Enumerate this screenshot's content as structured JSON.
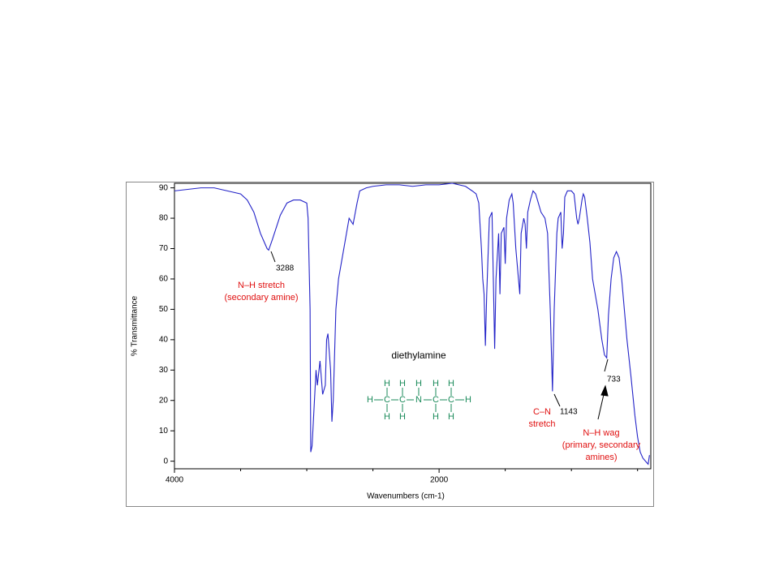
{
  "chart_data": {
    "type": "line",
    "xlabel": "Wavenumbers (cm-1)",
    "ylabel": "% Transmittance",
    "xlim": [
      4000,
      400
    ],
    "ylim": [
      -2.5,
      91.5
    ],
    "xticks": [
      4000,
      2000
    ],
    "xminor_ticks": [
      3500,
      3000,
      2500,
      1500,
      1000,
      500
    ],
    "yticks": [
      0,
      10,
      20,
      30,
      40,
      50,
      60,
      70,
      80,
      90
    ],
    "series": [
      {
        "color": "#2323c8",
        "x": [
          4000,
          3900,
          3800,
          3700,
          3600,
          3500,
          3450,
          3400,
          3350,
          3300,
          3288,
          3260,
          3200,
          3150,
          3100,
          3050,
          3000,
          2990,
          2975,
          2970,
          2960,
          2930,
          2920,
          2900,
          2880,
          2860,
          2850,
          2840,
          2820,
          2810,
          2800,
          2780,
          2760,
          2740,
          2700,
          2680,
          2650,
          2620,
          2600,
          2550,
          2500,
          2400,
          2300,
          2200,
          2100,
          2000,
          1900,
          1800,
          1750,
          1720,
          1700,
          1680,
          1670,
          1660,
          1650,
          1640,
          1620,
          1600,
          1590,
          1580,
          1570,
          1550,
          1540,
          1530,
          1510,
          1500,
          1490,
          1470,
          1450,
          1440,
          1420,
          1400,
          1390,
          1380,
          1360,
          1350,
          1340,
          1330,
          1310,
          1290,
          1270,
          1250,
          1230,
          1200,
          1180,
          1160,
          1143,
          1130,
          1110,
          1100,
          1080,
          1070,
          1060,
          1050,
          1030,
          1000,
          980,
          960,
          950,
          940,
          920,
          910,
          900,
          880,
          860,
          840,
          800,
          770,
          750,
          733,
          720,
          700,
          680,
          660,
          640,
          620,
          600,
          580,
          550,
          520,
          500,
          480,
          460,
          440,
          420,
          410
        ],
        "values": [
          89,
          89.5,
          90,
          90,
          89,
          88,
          86,
          82,
          75,
          70,
          69.5,
          73,
          81,
          85,
          86,
          86,
          85,
          80,
          50,
          3,
          5,
          30,
          25,
          33,
          22,
          25,
          40,
          42,
          30,
          13,
          20,
          50,
          60,
          65,
          75,
          80,
          78,
          85,
          89,
          90,
          90.5,
          91,
          91,
          90.5,
          91,
          91,
          91.5,
          90.5,
          89,
          88,
          85,
          70,
          60,
          55,
          38,
          55,
          80,
          82,
          60,
          37,
          60,
          75,
          55,
          75,
          77,
          65,
          80,
          86,
          88,
          85,
          70,
          60,
          55,
          75,
          80,
          78,
          70,
          82,
          86,
          89,
          88,
          85,
          82,
          80,
          75,
          50,
          23,
          50,
          75,
          80,
          82,
          70,
          75,
          87,
          89,
          89,
          88,
          80,
          78,
          80,
          86,
          88,
          87,
          80,
          72,
          60,
          50,
          40,
          35,
          34,
          48,
          60,
          67,
          69,
          67,
          60,
          50,
          40,
          28,
          15,
          8,
          3,
          1,
          0,
          -1,
          2
        ]
      }
    ],
    "annotations": [
      {
        "x": 3288,
        "label": "3288",
        "note": [
          "N–H stretch",
          "(secondary amine)"
        ]
      },
      {
        "x": 1143,
        "label": "1143",
        "note": [
          "C–N",
          "stretch"
        ]
      },
      {
        "x": 733,
        "label": "733",
        "note": [
          "N–H wag",
          "(primary, secondary",
          "amines)"
        ]
      }
    ],
    "compound": {
      "name": "diethylamine",
      "top": [
        "H",
        "H",
        "H",
        "H",
        "H"
      ],
      "middle": [
        "H",
        "C",
        "C",
        "N",
        "C",
        "C",
        "H"
      ],
      "bottom": [
        "H",
        "H",
        "H",
        "H"
      ]
    }
  }
}
